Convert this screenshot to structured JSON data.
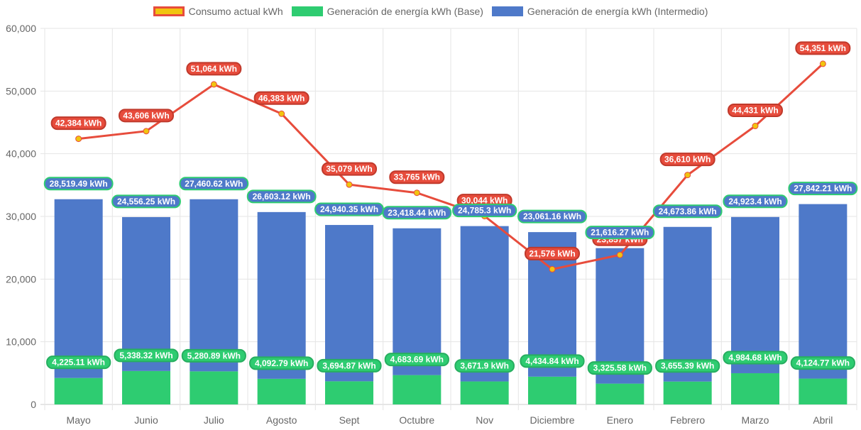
{
  "chart_data": {
    "type": "bar",
    "title": "",
    "xlabel": "",
    "ylabel": "",
    "ylim": [
      0,
      60000
    ],
    "yticks": [
      0,
      10000,
      20000,
      30000,
      40000,
      50000,
      60000
    ],
    "ytick_labels": [
      "0",
      "10,000",
      "20,000",
      "30,000",
      "40,000",
      "50,000",
      "60,000"
    ],
    "grid": true,
    "legend_position": "top-center",
    "stacked": true,
    "unit_suffix": " kWh",
    "categories": [
      "Mayo",
      "Junio",
      "Julio",
      "Agosto",
      "Sept",
      "Octubre",
      "Nov",
      "Diciembre",
      "Enero",
      "Febrero",
      "Marzo",
      "Abril"
    ],
    "series": [
      {
        "name": "Consumo actual kWh",
        "type": "line",
        "color": "#e74c3c",
        "point_color": "#f1c40f",
        "legend_fill": "#f1c40f",
        "legend_border": "#e74c3c",
        "values": [
          42384,
          43606,
          51064,
          46383,
          35079,
          33765,
          30044,
          21576,
          23857,
          36610,
          44431,
          54351
        ],
        "labels": [
          "42,384 kWh",
          "43,606 kWh",
          "51,064 kWh",
          "46,383 kWh",
          "35,079 kWh",
          "33,765 kWh",
          "30,044 kWh",
          "21,576 kWh",
          "23,857 kWh",
          "36,610 kWh",
          "44,431 kWh",
          "54,351 kWh"
        ]
      },
      {
        "name": "Generación de energía kWh (Base)",
        "type": "bar",
        "color": "#2ecc71",
        "values": [
          4225.11,
          5338.32,
          5280.89,
          4092.79,
          3694.87,
          4683.69,
          3671.9,
          4434.84,
          3325.58,
          3655.39,
          4984.68,
          4124.77
        ],
        "labels": [
          "4,225.11 kWh",
          "5,338.32 kWh",
          "5,280.89 kWh",
          "4,092.79 kWh",
          "3,694.87 kWh",
          "4,683.69 kWh",
          "3,671.9 kWh",
          "4,434.84 kWh",
          "3,325.58 kWh",
          "3,655.39 kWh",
          "4,984.68 kWh",
          "4,124.77 kWh"
        ]
      },
      {
        "name": "Generación de energía kWh (Intermedio)",
        "type": "bar",
        "color": "#4e79c9",
        "label_border": "#2ecc71",
        "values": [
          28519.49,
          24556.25,
          27460.62,
          26603.12,
          24940.35,
          23418.44,
          24785.3,
          23061.16,
          21616.27,
          24673.86,
          24923.4,
          27842.21
        ],
        "labels": [
          "28,519.49 kWh",
          "24,556.25 kWh",
          "27,460.62 kWh",
          "26,603.12 kWh",
          "24,940.35 kWh",
          "23,418.44 kWh",
          "24,785.3 kWh",
          "23,061.16 kWh",
          "21,616.27 kWh",
          "24,673.86 kWh",
          "24,923.4 kWh",
          "27,842.21 kWh"
        ]
      }
    ]
  }
}
